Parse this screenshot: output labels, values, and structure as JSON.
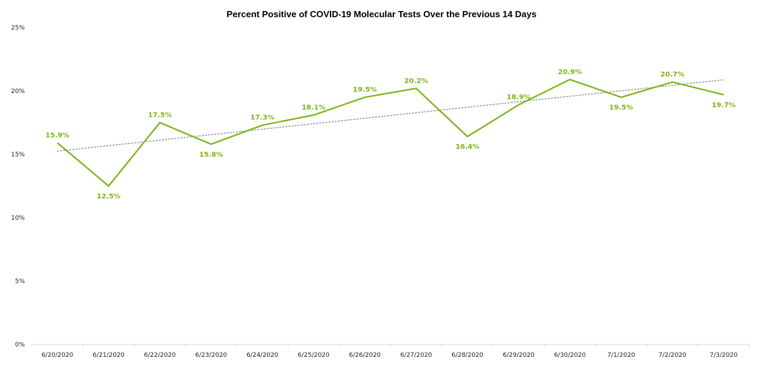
{
  "chart_data": {
    "type": "line",
    "title": "Percent Positive of COVID-19 Molecular Tests Over the Previous 14 Days",
    "xlabel": "",
    "ylabel": "",
    "categories": [
      "6/20/2020",
      "6/21/2020",
      "6/22/2020",
      "6/23/2020",
      "6/24/2020",
      "6/25/2020",
      "6/26/2020",
      "6/27/2020",
      "6/28/2020",
      "6/29/2020",
      "6/30/2020",
      "7/1/2020",
      "7/2/2020",
      "7/3/2020"
    ],
    "series": [
      {
        "values": [
          15.9,
          12.5,
          17.5,
          15.8,
          17.3,
          18.1,
          19.5,
          20.2,
          16.4,
          18.9,
          20.9,
          19.5,
          20.7,
          19.7
        ],
        "data_labels": [
          "15.9%",
          "12.5%",
          "17.5%",
          "15.8%",
          "17.3%",
          "18.1%",
          "19.5%",
          "20.2%",
          "16.4%",
          "18.9%",
          "20.9%",
          "19.5%",
          "20.7%",
          "19.7%"
        ],
        "color": "#7cb518"
      }
    ],
    "trendline": {
      "type": "linear",
      "style": "dotted",
      "color": "#a0a0a0"
    },
    "ylim": [
      0,
      25
    ],
    "yticks": [
      "0%",
      "5%",
      "10%",
      "15%",
      "20%",
      "25%"
    ],
    "grid": false,
    "legend": "none"
  }
}
